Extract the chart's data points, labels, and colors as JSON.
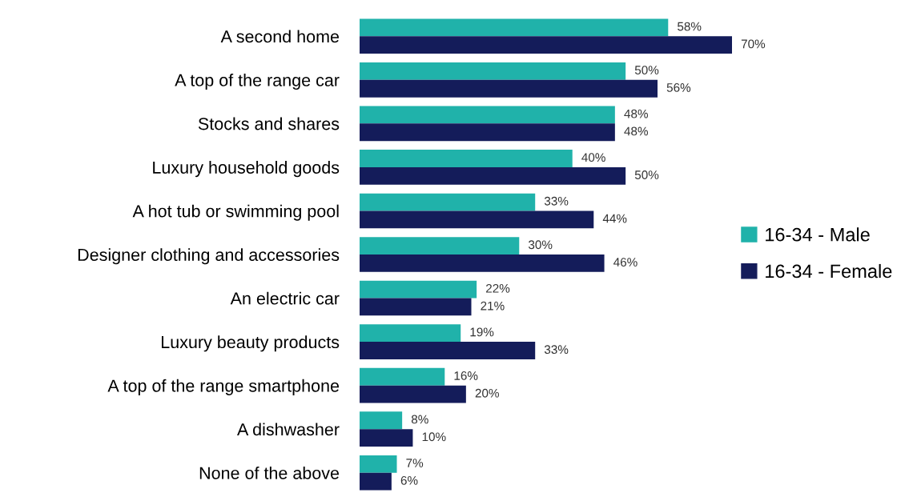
{
  "chart_data": {
    "type": "bar",
    "orientation": "horizontal",
    "categories": [
      "A second home",
      "A top of the range car",
      "Stocks and shares",
      "Luxury household goods",
      "A hot tub or swimming pool",
      "Designer clothing and accessories",
      "An electric car",
      "Luxury beauty products",
      "A top of the range smartphone",
      "A dishwasher",
      "None of the above"
    ],
    "series": [
      {
        "name": "16-34 - Male",
        "color": "#20b2aa",
        "values": [
          58,
          50,
          48,
          40,
          33,
          30,
          22,
          19,
          16,
          8,
          7
        ],
        "value_labels": [
          "58%",
          "50%",
          "48%",
          "40%",
          "33%",
          "30%",
          "22%",
          "19%",
          "16%",
          "8%",
          "7%"
        ]
      },
      {
        "name": "16-34 - Female",
        "color": "#141c5a",
        "values": [
          70,
          56,
          48,
          50,
          44,
          46,
          21,
          33,
          20,
          10,
          6
        ],
        "value_labels": [
          "70%",
          "56%",
          "48%",
          "50%",
          "44%",
          "46%",
          "21%",
          "33%",
          "20%",
          "10%",
          "6%"
        ]
      }
    ],
    "legend": "right",
    "grid": false
  }
}
